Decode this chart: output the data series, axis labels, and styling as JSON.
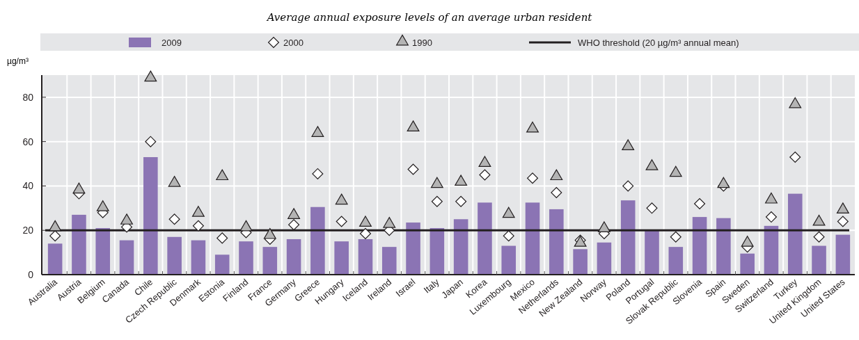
{
  "chart_data": {
    "type": "bar",
    "subtitle": "Average annual exposure levels of an average urban resident",
    "ylabel": "µg/m³",
    "categories": [
      "Australia",
      "Austria",
      "Belgium",
      "Canada",
      "Chile",
      "Czech Republic",
      "Denmark",
      "Estonia",
      "Finland",
      "France",
      "Germany",
      "Greece",
      "Hungary",
      "Iceland",
      "Ireland",
      "Israel",
      "Italy",
      "Japan",
      "Korea",
      "Luxembourg",
      "Mexico",
      "Netherlands",
      "New Zealand",
      "Norway",
      "Poland",
      "Portugal",
      "Slovak Republic",
      "Slovenia",
      "Spain",
      "Sweden",
      "Switzerland",
      "Turkey",
      "United Kingdom",
      "United States"
    ],
    "series": [
      {
        "name": "2009",
        "color": "#8b74b4",
        "values": [
          14,
          27,
          21,
          15.5,
          53,
          17,
          15.5,
          9,
          15,
          12.5,
          16,
          30.5,
          15,
          16,
          12.5,
          23.5,
          21,
          25,
          32.5,
          13,
          32.5,
          29.5,
          11.5,
          14.5,
          33.5,
          20,
          12.5,
          26,
          25.5,
          9.5,
          22,
          36.5,
          13,
          18
        ]
      },
      {
        "name": "2000",
        "type": "scatter",
        "marker": "diamond",
        "color": "#ffffff",
        "values": [
          17.5,
          36.5,
          28,
          21.5,
          60,
          25,
          22,
          16.5,
          19,
          16,
          22.5,
          45.5,
          24,
          18.5,
          20,
          47.5,
          33,
          33,
          45,
          17.5,
          43.5,
          37,
          15.5,
          18.5,
          40,
          30,
          17,
          32,
          40,
          12.5,
          26,
          53,
          17,
          24
        ]
      },
      {
        "name": "1990",
        "type": "scatter",
        "marker": "triangle",
        "color": "#b4b4b4",
        "values": [
          21,
          38,
          30,
          24,
          88.5,
          41,
          27.5,
          44,
          21,
          17.5,
          26.5,
          63.5,
          33,
          23,
          22.5,
          66,
          40.5,
          41.5,
          50,
          27,
          65.5,
          44,
          14,
          20.5,
          57.5,
          48.5,
          45.5,
          null,
          40.5,
          14,
          33.5,
          76.5,
          23.5,
          29
        ]
      }
    ],
    "ylim": [
      0,
      90
    ],
    "yticks": [
      0,
      20,
      40,
      60,
      80
    ],
    "grid": true,
    "legend": "top",
    "ref_lines": [
      {
        "axis": "y",
        "value": 20,
        "label": "WHO threshold (20 µg/m³ annual mean)",
        "color": "#231f20",
        "line_style": "solid"
      }
    ]
  }
}
